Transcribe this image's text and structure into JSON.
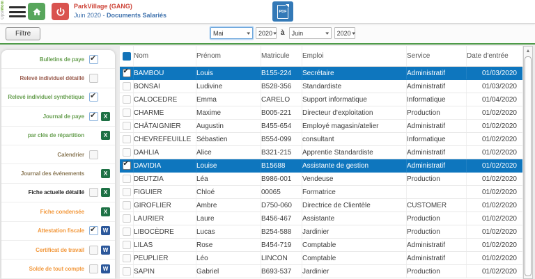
{
  "brand": {
    "vertical_text_gray": "Opsi",
    "vertical_text_green": "Wom"
  },
  "header": {
    "title": "ParkVillage (GANG)",
    "subtitle_prefix": "Juin 2020 - ",
    "subtitle_bold": "Documents Salariés",
    "pdf_label": "PDF"
  },
  "filter_bar": {
    "filter_button": "Filtre",
    "from_month": "Mai",
    "from_year": "2020",
    "to_label": "à",
    "to_month": "Juin",
    "to_year": "2020"
  },
  "sidebar": {
    "items": [
      {
        "label": "Bulletins de paye",
        "color": "#69a052",
        "checkbox": "checked",
        "icon": "none"
      },
      {
        "label": "Relevé individuel détaillé",
        "color": "#9c6052",
        "checkbox": "unchecked",
        "icon": "none"
      },
      {
        "label": "Relevé individuel synthétique",
        "color": "#69a052",
        "checkbox": "checked",
        "icon": "none"
      },
      {
        "label": "Journal de paye",
        "color": "#69a052",
        "checkbox": "checked",
        "icon": "excel"
      },
      {
        "label": "par clés de répartition",
        "color": "#69a052",
        "checkbox": "none",
        "icon": "excel"
      },
      {
        "label": "Calendrier",
        "color": "#8c7a58",
        "checkbox": "unchecked",
        "icon": "none"
      },
      {
        "label": "Journal des événements",
        "color": "#8c7a58",
        "checkbox": "none",
        "icon": "excel"
      },
      {
        "label": "Fiche actuelle détaillé",
        "color": "#2b2b2b",
        "checkbox": "unchecked",
        "icon": "excel"
      },
      {
        "label": "Fiche condensée",
        "color": "#f2993e",
        "checkbox": "none",
        "icon": "excel"
      },
      {
        "label": "Attestation fiscale",
        "color": "#f2993e",
        "checkbox": "checked",
        "icon": "word"
      },
      {
        "label": "Certificat de travail",
        "color": "#f2993e",
        "checkbox": "unchecked",
        "icon": "word"
      },
      {
        "label": "Solde de tout compte",
        "color": "#f2993e",
        "checkbox": "unchecked",
        "icon": "word"
      }
    ],
    "excel_icon_letter": "X",
    "word_icon_letter": "W"
  },
  "table": {
    "columns": [
      "Nom",
      "Prénom",
      "Matricule",
      "Emploi",
      "Service",
      "Date d'entrée"
    ],
    "rows": [
      {
        "nom": "BAMBOU",
        "prenom": "Louis",
        "matricule": "B155-224",
        "emploi": "Secrétaire",
        "service": "Administratif",
        "date": "01/03/2020",
        "selected": true
      },
      {
        "nom": "BONSAI",
        "prenom": "Ludivine",
        "matricule": "B528-356",
        "emploi": "Standardiste",
        "service": "Administratif",
        "date": "01/03/2020",
        "selected": false
      },
      {
        "nom": "CALOCEDRE",
        "prenom": "Emma",
        "matricule": "CARELO",
        "emploi": "Support informatique",
        "service": "Informatique",
        "date": "01/04/2020",
        "selected": false
      },
      {
        "nom": "CHARME",
        "prenom": "Maxime",
        "matricule": "B005-221",
        "emploi": "Directeur d'exploitation",
        "service": "Production",
        "date": "01/02/2020",
        "selected": false
      },
      {
        "nom": "CHÂTAIGNIER",
        "prenom": "Augustin",
        "matricule": "B455-654",
        "emploi": "Employé magasin/atelier",
        "service": "Administratif",
        "date": "01/02/2020",
        "selected": false
      },
      {
        "nom": "CHEVREFEUILLE",
        "prenom": "Sébastien",
        "matricule": "B554-099",
        "emploi": "consultant",
        "service": "Informatique",
        "date": "01/02/2020",
        "selected": false
      },
      {
        "nom": "DAHLIA",
        "prenom": "Alice",
        "matricule": "B321-215",
        "emploi": "Apprentie Standardiste",
        "service": "Administratif",
        "date": "01/02/2020",
        "selected": false
      },
      {
        "nom": "DAVIDIA",
        "prenom": "Louise",
        "matricule": "B15688",
        "emploi": "Assistante de gestion",
        "service": "Administratif",
        "date": "01/02/2020",
        "selected": true
      },
      {
        "nom": "DEUTZIA",
        "prenom": "Léa",
        "matricule": "B986-001",
        "emploi": "Vendeuse",
        "service": "Production",
        "date": "01/02/2020",
        "selected": false
      },
      {
        "nom": "FIGUIER",
        "prenom": "Chloé",
        "matricule": "00065",
        "emploi": "Formatrice",
        "service": "",
        "date": "01/02/2020",
        "selected": false
      },
      {
        "nom": "GIROFLIER",
        "prenom": "Ambre",
        "matricule": "D750-060",
        "emploi": "Directrice de Clientèle",
        "service": "CUSTOMER",
        "date": "01/02/2020",
        "selected": false
      },
      {
        "nom": "LAURIER",
        "prenom": "Laure",
        "matricule": "B456-467",
        "emploi": "Assistante",
        "service": "Production",
        "date": "01/02/2020",
        "selected": false
      },
      {
        "nom": "LIBOCÈDRE",
        "prenom": "Lucas",
        "matricule": "B254-588",
        "emploi": "Jardinier",
        "service": "Production",
        "date": "01/02/2020",
        "selected": false
      },
      {
        "nom": "LILAS",
        "prenom": "Rose",
        "matricule": "B454-719",
        "emploi": "Comptable",
        "service": "Administratif",
        "date": "01/02/2020",
        "selected": false
      },
      {
        "nom": "PEUPLIER",
        "prenom": "Léo",
        "matricule": "LINCON",
        "emploi": "Comptable",
        "service": "Administratif",
        "date": "01/02/2020",
        "selected": false
      },
      {
        "nom": "SAPIN",
        "prenom": "Gabriel",
        "matricule": "B693-537",
        "emploi": "Jardinier",
        "service": "Production",
        "date": "01/02/2020",
        "selected": false
      }
    ]
  },
  "colors": {
    "selected_row": "#0e76be",
    "green_accent": "#4f9b49",
    "home_button": "#58a65c",
    "power_button": "#d9534f",
    "pdf_button": "#3379b7",
    "title_red": "#cd4337",
    "subtitle_blue": "#3f72ad",
    "excel_green": "#1e7145",
    "word_blue": "#2b579a",
    "header_checkbox_blue": "#1273b8"
  }
}
